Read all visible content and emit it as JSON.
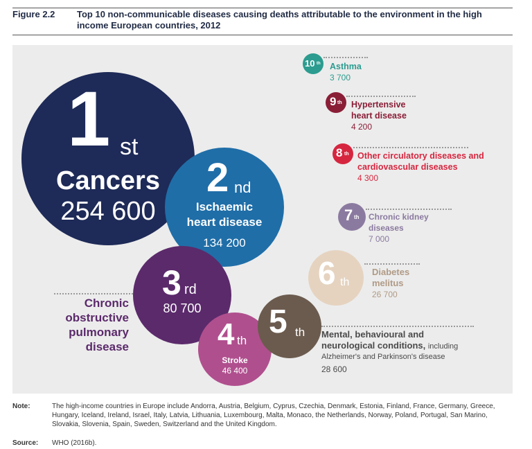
{
  "figure": {
    "label": "Figure 2.2",
    "title": "Top 10 non-communicable diseases causing deaths attributable to the environment in the high income European countries, 2012"
  },
  "colors": {
    "rank1": "#1e2a57",
    "rank2": "#1f6ea8",
    "rank3": "#5b2a6b",
    "rank4": "#b04f8e",
    "rank5": "#6b5b4e",
    "rank6": "#e5d3c0",
    "rank7": "#8b7aa0",
    "rank8": "#d6263f",
    "rank9": "#8a1e37",
    "rank10": "#2b9c8f"
  },
  "ranks": {
    "r1": {
      "num": "1",
      "suffix": "st",
      "name": "Cancers",
      "value": "254 600"
    },
    "r2": {
      "num": "2",
      "suffix": "nd",
      "name_line1": "Ischaemic",
      "name_line2": "heart disease",
      "value": "134 200"
    },
    "r3": {
      "num": "3",
      "suffix": "rd",
      "value": "80 700",
      "name_line1": "Chronic",
      "name_line2": "obstructive",
      "name_line3": "pulmonary",
      "name_line4": "disease"
    },
    "r4": {
      "num": "4",
      "suffix": "th",
      "name": "Stroke",
      "value": "46 400"
    },
    "r5": {
      "num": "5",
      "suffix": "th",
      "name_line1": "Mental, behavioural and",
      "name_line2": "neurological conditions,",
      "name_suffix": "including",
      "name_line3": "Alzheimer's and Parkinson's disease",
      "value": "28 600"
    },
    "r6": {
      "num": "6",
      "suffix": "th",
      "name_line1": "Diabetes",
      "name_line2": "melitus",
      "value": "26 700"
    },
    "r7": {
      "num": "7",
      "suffix": "th",
      "name_line1": "Chronic kidney",
      "name_line2": "diseases",
      "value": "7 000"
    },
    "r8": {
      "num": "8",
      "suffix": "th",
      "name_line1": "Other circulatory diseases and",
      "name_line2": "cardiovascular diseases",
      "value": "4 300"
    },
    "r9": {
      "num": "9",
      "suffix": "th",
      "name_line1": "Hypertensive",
      "name_line2": "heart disease",
      "value": "4 200"
    },
    "r10": {
      "num": "10",
      "suffix": "th",
      "name": "Asthma",
      "value": "3 700"
    }
  },
  "note": {
    "label": "Note:",
    "text": "The high-income countries in Europe include Andorra, Austria, Belgium, Cyprus, Czechia, Denmark, Estonia, Finland, France, Germany, Greece, Hungary, Iceland, Ireland, Israel, Italy, Latvia, Lithuania, Luxembourg, Malta, Monaco, the Netherlands, Norway, Poland, Portugal, San Marino, Slovakia, Slovenia, Spain, Sweden, Switzerland and the United Kingdom."
  },
  "source": {
    "label": "Source:",
    "text": "WHO (2016b)."
  }
}
